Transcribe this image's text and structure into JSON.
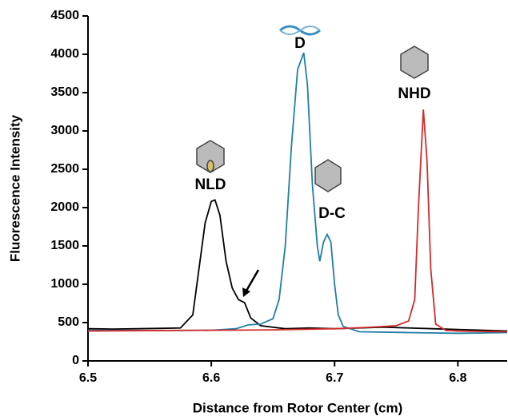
{
  "chart_data": {
    "type": "line",
    "x_label": "Distance from Rotor Center (cm)",
    "y_label": "Fluorescence Intensity",
    "xlim": [
      6.5,
      6.84
    ],
    "xticks": [
      6.5,
      6.6,
      6.7,
      6.8
    ],
    "ylim": [
      0,
      4500
    ],
    "yticks": [
      0,
      500,
      1000,
      1500,
      2000,
      2500,
      3000,
      3500,
      4000,
      4500
    ],
    "grid": false,
    "annotations": [
      "NLD",
      "D",
      "D-C",
      "NHD"
    ],
    "series": [
      {
        "color": "#000000",
        "x": [
          6.5,
          6.52,
          6.54,
          6.56,
          6.575,
          6.585,
          6.59,
          6.595,
          6.6,
          6.603,
          6.607,
          6.612,
          6.617,
          6.622,
          6.627,
          6.632,
          6.64,
          6.66,
          6.68,
          6.7,
          6.72,
          6.74,
          6.76,
          6.78,
          6.8,
          6.84
        ],
        "values": [
          420,
          415,
          420,
          425,
          430,
          600,
          1200,
          1800,
          2080,
          2100,
          1900,
          1300,
          950,
          800,
          760,
          560,
          460,
          420,
          430,
          420,
          430,
          440,
          430,
          420,
          410,
          390
        ]
      },
      {
        "color": "#1f7fa3",
        "x": [
          6.5,
          6.55,
          6.6,
          6.62,
          6.63,
          6.64,
          6.65,
          6.655,
          6.66,
          6.665,
          6.67,
          6.675,
          6.678,
          6.682,
          6.686,
          6.688,
          6.691,
          6.694,
          6.697,
          6.7,
          6.703,
          6.707,
          6.72,
          6.76,
          6.8,
          6.84
        ],
        "values": [
          400,
          395,
          400,
          420,
          470,
          480,
          550,
          800,
          1500,
          2800,
          3800,
          4020,
          3600,
          2300,
          1500,
          1300,
          1550,
          1650,
          1550,
          1000,
          600,
          450,
          380,
          370,
          360,
          370
        ]
      },
      {
        "color": "#d42a2a",
        "x": [
          6.5,
          6.55,
          6.6,
          6.65,
          6.7,
          6.73,
          6.75,
          6.76,
          6.765,
          6.768,
          6.772,
          6.775,
          6.778,
          6.782,
          6.79,
          6.8,
          6.84
        ],
        "values": [
          390,
          395,
          400,
          405,
          420,
          440,
          460,
          520,
          800,
          2000,
          3280,
          2600,
          1200,
          480,
          400,
          390,
          380
        ]
      }
    ]
  }
}
